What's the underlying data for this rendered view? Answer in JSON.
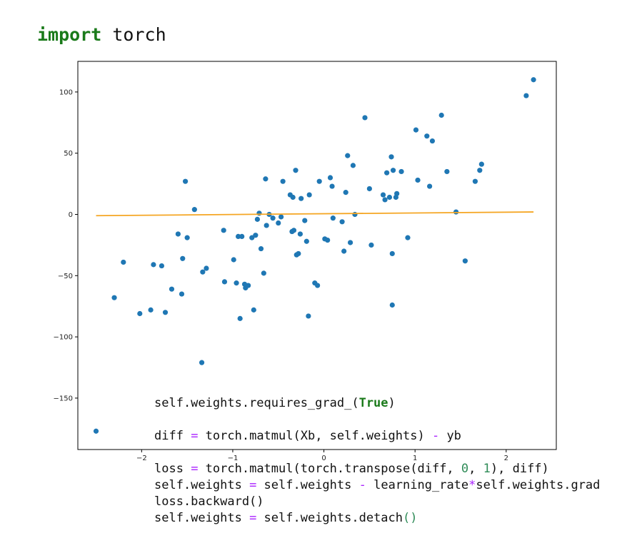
{
  "header": {
    "keyword": "import",
    "module": " torch"
  },
  "code_top": [
    [
      "self.weights.requires_grad_(",
      "True",
      ")"
    ],
    [
      "diff ",
      "=",
      " torch.matmul(Xb, self.weights) ",
      "-",
      " yb"
    ],
    [
      "loss ",
      "=",
      " torch.matmul(torch.transpose(diff, ",
      "0",
      ", ",
      "1",
      "), diff)"
    ],
    [
      "loss.backward()"
    ]
  ],
  "code_bottom": [
    [
      "self.weights ",
      "=",
      " self.weights ",
      "-",
      " learning_rate",
      "*",
      "self.weights.grad"
    ],
    [
      "self.weights ",
      "=",
      " self.weights.detach",
      "(",
      ")"
    ]
  ],
  "chart_data": {
    "type": "scatter",
    "title": "",
    "xlabel": "",
    "ylabel": "",
    "xlim": [
      -2.7,
      2.55
    ],
    "ylim": [
      -192,
      125
    ],
    "x_ticks": [
      -2,
      -1,
      0,
      1,
      2
    ],
    "y_ticks": [
      -150,
      -100,
      -50,
      0,
      50,
      100
    ],
    "grid": false,
    "colors": {
      "points": "#1f77b4",
      "line": "#f5a623"
    },
    "series": [
      {
        "values": [
          [
            -2.5,
            -177
          ],
          [
            -2.3,
            -68
          ],
          [
            -2.2,
            -39
          ],
          [
            -2.02,
            -81
          ],
          [
            -1.9,
            -78
          ],
          [
            -1.87,
            -41
          ],
          [
            -1.78,
            -42
          ],
          [
            -1.74,
            -80
          ],
          [
            -1.67,
            -61
          ],
          [
            -1.6,
            -16
          ],
          [
            -1.56,
            -65
          ],
          [
            -1.55,
            -36
          ],
          [
            -1.52,
            27
          ],
          [
            -1.5,
            -19
          ],
          [
            -1.42,
            4
          ],
          [
            -1.34,
            -121
          ],
          [
            -1.33,
            -47
          ],
          [
            -1.29,
            -44
          ],
          [
            -1.1,
            -13
          ],
          [
            -1.09,
            -55
          ],
          [
            -0.99,
            -37
          ],
          [
            -0.96,
            -56
          ],
          [
            -0.94,
            -18
          ],
          [
            -0.92,
            -85
          ],
          [
            -0.9,
            -18
          ],
          [
            -0.87,
            -57
          ],
          [
            -0.86,
            -60
          ],
          [
            -0.83,
            -58
          ],
          [
            -0.79,
            -19
          ],
          [
            -0.77,
            -78
          ],
          [
            -0.75,
            -17
          ],
          [
            -0.73,
            -4
          ],
          [
            -0.71,
            1
          ],
          [
            -0.69,
            -28
          ],
          [
            -0.66,
            -48
          ],
          [
            -0.64,
            29
          ],
          [
            -0.63,
            -9
          ],
          [
            -0.6,
            0
          ],
          [
            -0.56,
            -3
          ],
          [
            -0.5,
            -7
          ],
          [
            -0.47,
            -2
          ],
          [
            -0.45,
            27
          ],
          [
            -0.37,
            16
          ],
          [
            -0.35,
            -14
          ],
          [
            -0.34,
            14
          ],
          [
            -0.33,
            -13
          ],
          [
            -0.31,
            36
          ],
          [
            -0.3,
            -33
          ],
          [
            -0.28,
            -32
          ],
          [
            -0.26,
            -16
          ],
          [
            -0.25,
            13
          ],
          [
            -0.21,
            -5
          ],
          [
            -0.19,
            -22
          ],
          [
            -0.17,
            -83
          ],
          [
            -0.16,
            16
          ],
          [
            -0.1,
            -56
          ],
          [
            -0.07,
            -58
          ],
          [
            -0.05,
            27
          ],
          [
            0.01,
            -20
          ],
          [
            0.04,
            -21
          ],
          [
            0.07,
            30
          ],
          [
            0.09,
            23
          ],
          [
            0.1,
            -3
          ],
          [
            0.2,
            -6
          ],
          [
            0.22,
            -30
          ],
          [
            0.24,
            18
          ],
          [
            0.26,
            48
          ],
          [
            0.29,
            -23
          ],
          [
            0.32,
            40
          ],
          [
            0.34,
            0
          ],
          [
            0.45,
            79
          ],
          [
            0.5,
            21
          ],
          [
            0.52,
            -25
          ],
          [
            0.65,
            16
          ],
          [
            0.67,
            12
          ],
          [
            0.69,
            34
          ],
          [
            0.72,
            14
          ],
          [
            0.74,
            47
          ],
          [
            0.75,
            -32
          ],
          [
            0.75,
            -74
          ],
          [
            0.76,
            36
          ],
          [
            0.79,
            14
          ],
          [
            0.8,
            17
          ],
          [
            0.85,
            35
          ],
          [
            0.92,
            -19
          ],
          [
            1.01,
            69
          ],
          [
            1.03,
            28
          ],
          [
            1.13,
            64
          ],
          [
            1.16,
            23
          ],
          [
            1.19,
            60
          ],
          [
            1.29,
            81
          ],
          [
            1.35,
            35
          ],
          [
            1.45,
            2
          ],
          [
            1.55,
            -38
          ],
          [
            1.66,
            27
          ],
          [
            1.71,
            36
          ],
          [
            1.73,
            41
          ],
          [
            2.22,
            97
          ],
          [
            2.3,
            110
          ]
        ]
      }
    ],
    "fit_line": [
      [
        -2.5,
        -1
      ],
      [
        2.3,
        2
      ]
    ]
  }
}
